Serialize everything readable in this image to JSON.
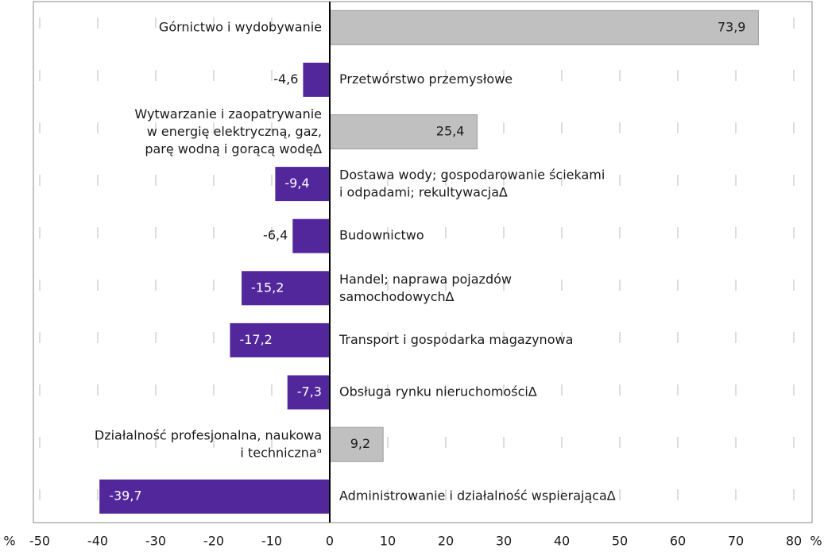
{
  "chart_data": {
    "type": "hbar",
    "categories": [
      "Górnictwo i wydobywanie",
      "Przetwórstwo przemysłowe",
      "Wytwarzanie i zaopatrywanie\nw energię elektryczną, gaz,\nparę wodną i gorącą wodę∆",
      "Dostawa wody; gospodarowanie ściekami\ni odpadami; rekultywacja∆",
      "Budownictwo",
      "Handel; naprawa pojazdów\nsamochodowych∆",
      "Transport i gospodarka magazynowa",
      "Obsługa rynku nieruchomości∆",
      "Działalność profesjonalna, naukowa\ni technicznaᵃ",
      "Administrowanie i działalność wspierająca∆"
    ],
    "values": [
      73.9,
      -4.6,
      25.4,
      -9.4,
      -6.4,
      -15.2,
      -17.2,
      -7.3,
      9.2,
      -39.7
    ],
    "value_labels": [
      "73,9",
      "-4,6",
      "25,4",
      "-9,4",
      "-6,4",
      "-15,2",
      "-17,2",
      "-7,3",
      "9,2",
      "-39,7"
    ],
    "positive_color": "#c0c0c0",
    "negative_color": "#53279c",
    "x_unit": "%",
    "xlim": [
      -50,
      80
    ],
    "xticks": [
      -50,
      -40,
      -30,
      -20,
      -10,
      0,
      10,
      20,
      30,
      40,
      50,
      60,
      70,
      80
    ],
    "grid": true
  }
}
